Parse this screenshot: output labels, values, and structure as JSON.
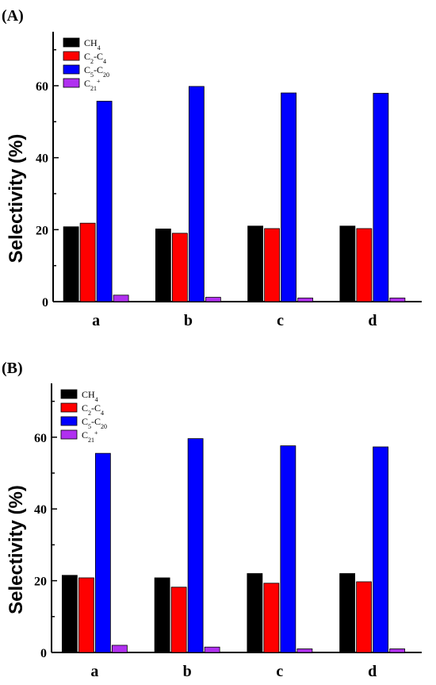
{
  "chart_data": [
    {
      "type": "bar",
      "panel_label": "(A)",
      "categories": [
        "a",
        "b",
        "c",
        "d"
      ],
      "ylabel": "Selectivity (%)",
      "ylim": [
        0,
        75
      ],
      "yticks": [
        0,
        20,
        40,
        60
      ],
      "legend_position": "top-left",
      "series": [
        {
          "name": "CH4",
          "label_parts": [
            {
              "t": "CH"
            },
            {
              "t": "4",
              "sub": true
            }
          ],
          "color": "#000000",
          "values": [
            20.8,
            20.2,
            21.0,
            21.0
          ]
        },
        {
          "name": "C2-C4",
          "label_parts": [
            {
              "t": "C"
            },
            {
              "t": "2",
              "sub": true
            },
            {
              "t": "-C"
            },
            {
              "t": "4",
              "sub": true
            }
          ],
          "color": "#ff0000",
          "values": [
            21.8,
            19.0,
            20.3,
            20.3
          ]
        },
        {
          "name": "C5-C20",
          "label_parts": [
            {
              "t": "C"
            },
            {
              "t": "5",
              "sub": true
            },
            {
              "t": "-C"
            },
            {
              "t": "20",
              "sub": true
            }
          ],
          "color": "#0000ff",
          "values": [
            55.7,
            59.8,
            58.0,
            57.9
          ]
        },
        {
          "name": "C21+",
          "label_parts": [
            {
              "t": "C"
            },
            {
              "t": "21",
              "sub": true
            },
            {
              "t": "+",
              "sup": true
            }
          ],
          "color": "#b030f0",
          "values": [
            1.8,
            1.2,
            1.0,
            1.0
          ]
        }
      ]
    },
    {
      "type": "bar",
      "panel_label": "(B)",
      "categories": [
        "a",
        "b",
        "c",
        "d"
      ],
      "ylabel": "Selectivity (%)",
      "ylim": [
        0,
        75
      ],
      "yticks": [
        0,
        20,
        40,
        60
      ],
      "legend_position": "top-left",
      "series": [
        {
          "name": "CH4",
          "label_parts": [
            {
              "t": "CH"
            },
            {
              "t": "4",
              "sub": true
            }
          ],
          "color": "#000000",
          "values": [
            21.5,
            20.8,
            22.0,
            22.0
          ]
        },
        {
          "name": "C2-C4",
          "label_parts": [
            {
              "t": "C"
            },
            {
              "t": "2",
              "sub": true
            },
            {
              "t": "-C"
            },
            {
              "t": "4",
              "sub": true
            }
          ],
          "color": "#ff0000",
          "values": [
            20.8,
            18.2,
            19.3,
            19.7
          ]
        },
        {
          "name": "C5-C20",
          "label_parts": [
            {
              "t": "C"
            },
            {
              "t": "5",
              "sub": true
            },
            {
              "t": "-C"
            },
            {
              "t": "20",
              "sub": true
            }
          ],
          "color": "#0000ff",
          "values": [
            55.5,
            59.6,
            57.6,
            57.3
          ]
        },
        {
          "name": "C21+",
          "label_parts": [
            {
              "t": "C"
            },
            {
              "t": "21",
              "sub": true
            },
            {
              "t": "+",
              "sup": true
            }
          ],
          "color": "#b030f0",
          "values": [
            2.0,
            1.5,
            1.0,
            1.0
          ]
        }
      ]
    }
  ]
}
